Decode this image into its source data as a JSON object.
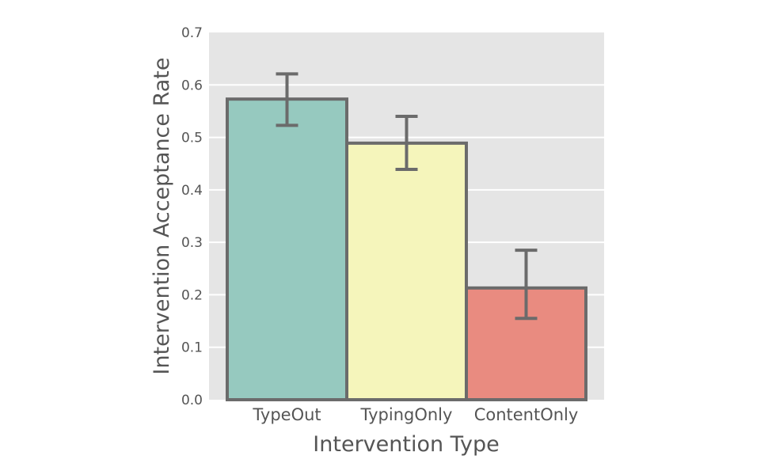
{
  "chart_data": {
    "type": "bar",
    "title": "",
    "xlabel": "Intervention Type",
    "ylabel": "Intervention Acceptance Rate",
    "categories": [
      "TypeOut",
      "TypingOnly",
      "ContentOnly"
    ],
    "values": [
      0.573,
      0.489,
      0.213
    ],
    "error_bars": {
      "lower": [
        0.523,
        0.439,
        0.155
      ],
      "upper": [
        0.621,
        0.54,
        0.285
      ]
    },
    "colors": [
      "#96c9bf",
      "#f5f5bb",
      "#e98b80"
    ],
    "edge_color": "#6b6b6b",
    "ylim": [
      0,
      0.7
    ],
    "yticks": [
      "0.0",
      "0.1",
      "0.2",
      "0.3",
      "0.4",
      "0.5",
      "0.6",
      "0.7"
    ],
    "grid": true,
    "background": "#e5e5e5",
    "legend": null
  }
}
